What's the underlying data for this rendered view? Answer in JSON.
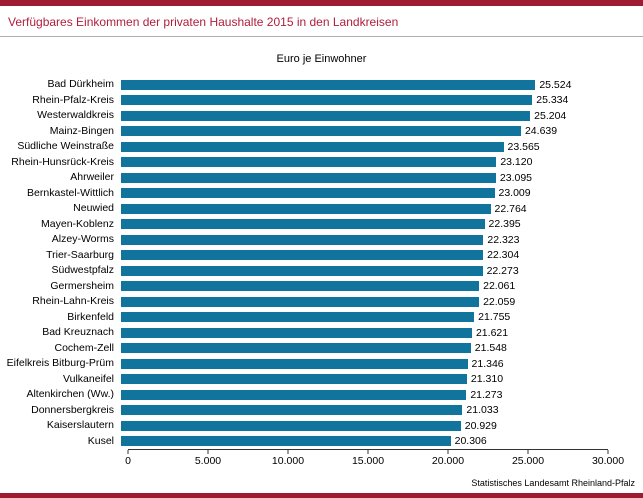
{
  "header": {
    "title": "Verfügbares Einkommen der privaten Haushalte 2015 in den Landkreisen"
  },
  "chart_data": {
    "type": "bar",
    "orientation": "horizontal",
    "title": "Euro je Einwohner",
    "categories": [
      "Bad Dürkheim",
      "Rhein-Pfalz-Kreis",
      "Westerwaldkreis",
      "Mainz-Bingen",
      "Südliche Weinstraße",
      "Rhein-Hunsrück-Kreis",
      "Ahrweiler",
      "Bernkastel-Wittlich",
      "Neuwied",
      "Mayen-Koblenz",
      "Alzey-Worms",
      "Trier-Saarburg",
      "Südwestpfalz",
      "Germersheim",
      "Rhein-Lahn-Kreis",
      "Birkenfeld",
      "Bad Kreuznach",
      "Cochem-Zell",
      "Eifelkreis Bitburg-Prüm",
      "Vulkaneifel",
      "Altenkirchen (Ww.)",
      "Donnersbergkreis",
      "Kaiserslautern",
      "Kusel"
    ],
    "values": [
      25524,
      25334,
      25204,
      24639,
      23565,
      23120,
      23095,
      23009,
      22764,
      22395,
      22323,
      22304,
      22273,
      22061,
      22059,
      21755,
      21621,
      21548,
      21346,
      21310,
      21273,
      21033,
      20929,
      20306
    ],
    "value_labels": [
      "25.524",
      "25.334",
      "25.204",
      "24.639",
      "23.565",
      "23.120",
      "23.095",
      "23.009",
      "22.764",
      "22.395",
      "22.323",
      "22.304",
      "22.273",
      "22.061",
      "22.059",
      "21.755",
      "21.621",
      "21.548",
      "21.346",
      "21.310",
      "21.273",
      "21.033",
      "20.929",
      "20.306"
    ],
    "xlim": [
      0,
      30000
    ],
    "x_ticks": [
      "0",
      "5.000",
      "10.000",
      "15.000",
      "20.000",
      "25.000",
      "30.000"
    ],
    "grid": false,
    "legend": false,
    "bar_color": "#10749c"
  },
  "footer": {
    "source": "Statistisches Landesamt Rheinland-Pfalz"
  },
  "colors": {
    "accent": "#9e1b32",
    "title_text": "#b01e3a",
    "bar": "#10749c",
    "axis": "#333333"
  }
}
